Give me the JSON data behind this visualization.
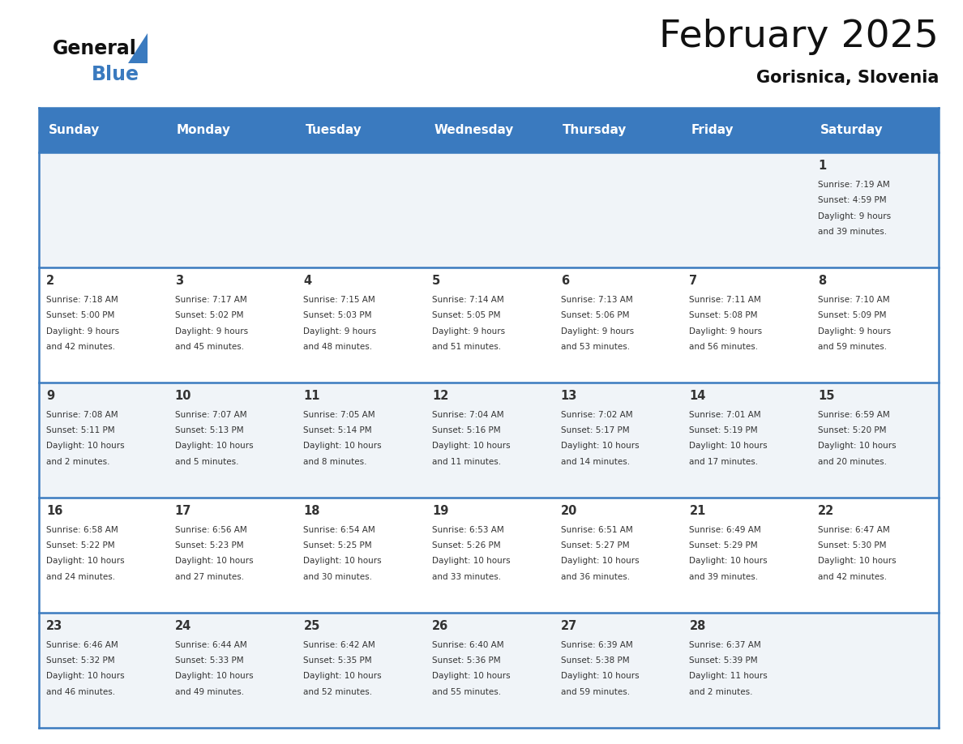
{
  "title": "February 2025",
  "subtitle": "Gorisnica, Slovenia",
  "header_bg_color": "#3a7abf",
  "header_text_color": "#ffffff",
  "cell_bg_even": "#f0f4f8",
  "cell_bg_odd": "#ffffff",
  "separator_color": "#3a7abf",
  "text_color": "#333333",
  "days_of_week": [
    "Sunday",
    "Monday",
    "Tuesday",
    "Wednesday",
    "Thursday",
    "Friday",
    "Saturday"
  ],
  "calendar_data": [
    [
      {
        "day": null,
        "sunrise": null,
        "sunset": null,
        "daylight": null
      },
      {
        "day": null,
        "sunrise": null,
        "sunset": null,
        "daylight": null
      },
      {
        "day": null,
        "sunrise": null,
        "sunset": null,
        "daylight": null
      },
      {
        "day": null,
        "sunrise": null,
        "sunset": null,
        "daylight": null
      },
      {
        "day": null,
        "sunrise": null,
        "sunset": null,
        "daylight": null
      },
      {
        "day": null,
        "sunrise": null,
        "sunset": null,
        "daylight": null
      },
      {
        "day": 1,
        "sunrise": "7:19 AM",
        "sunset": "4:59 PM",
        "daylight": "9 hours and 39 minutes."
      }
    ],
    [
      {
        "day": 2,
        "sunrise": "7:18 AM",
        "sunset": "5:00 PM",
        "daylight": "9 hours and 42 minutes."
      },
      {
        "day": 3,
        "sunrise": "7:17 AM",
        "sunset": "5:02 PM",
        "daylight": "9 hours and 45 minutes."
      },
      {
        "day": 4,
        "sunrise": "7:15 AM",
        "sunset": "5:03 PM",
        "daylight": "9 hours and 48 minutes."
      },
      {
        "day": 5,
        "sunrise": "7:14 AM",
        "sunset": "5:05 PM",
        "daylight": "9 hours and 51 minutes."
      },
      {
        "day": 6,
        "sunrise": "7:13 AM",
        "sunset": "5:06 PM",
        "daylight": "9 hours and 53 minutes."
      },
      {
        "day": 7,
        "sunrise": "7:11 AM",
        "sunset": "5:08 PM",
        "daylight": "9 hours and 56 minutes."
      },
      {
        "day": 8,
        "sunrise": "7:10 AM",
        "sunset": "5:09 PM",
        "daylight": "9 hours and 59 minutes."
      }
    ],
    [
      {
        "day": 9,
        "sunrise": "7:08 AM",
        "sunset": "5:11 PM",
        "daylight": "10 hours and 2 minutes."
      },
      {
        "day": 10,
        "sunrise": "7:07 AM",
        "sunset": "5:13 PM",
        "daylight": "10 hours and 5 minutes."
      },
      {
        "day": 11,
        "sunrise": "7:05 AM",
        "sunset": "5:14 PM",
        "daylight": "10 hours and 8 minutes."
      },
      {
        "day": 12,
        "sunrise": "7:04 AM",
        "sunset": "5:16 PM",
        "daylight": "10 hours and 11 minutes."
      },
      {
        "day": 13,
        "sunrise": "7:02 AM",
        "sunset": "5:17 PM",
        "daylight": "10 hours and 14 minutes."
      },
      {
        "day": 14,
        "sunrise": "7:01 AM",
        "sunset": "5:19 PM",
        "daylight": "10 hours and 17 minutes."
      },
      {
        "day": 15,
        "sunrise": "6:59 AM",
        "sunset": "5:20 PM",
        "daylight": "10 hours and 20 minutes."
      }
    ],
    [
      {
        "day": 16,
        "sunrise": "6:58 AM",
        "sunset": "5:22 PM",
        "daylight": "10 hours and 24 minutes."
      },
      {
        "day": 17,
        "sunrise": "6:56 AM",
        "sunset": "5:23 PM",
        "daylight": "10 hours and 27 minutes."
      },
      {
        "day": 18,
        "sunrise": "6:54 AM",
        "sunset": "5:25 PM",
        "daylight": "10 hours and 30 minutes."
      },
      {
        "day": 19,
        "sunrise": "6:53 AM",
        "sunset": "5:26 PM",
        "daylight": "10 hours and 33 minutes."
      },
      {
        "day": 20,
        "sunrise": "6:51 AM",
        "sunset": "5:27 PM",
        "daylight": "10 hours and 36 minutes."
      },
      {
        "day": 21,
        "sunrise": "6:49 AM",
        "sunset": "5:29 PM",
        "daylight": "10 hours and 39 minutes."
      },
      {
        "day": 22,
        "sunrise": "6:47 AM",
        "sunset": "5:30 PM",
        "daylight": "10 hours and 42 minutes."
      }
    ],
    [
      {
        "day": 23,
        "sunrise": "6:46 AM",
        "sunset": "5:32 PM",
        "daylight": "10 hours and 46 minutes."
      },
      {
        "day": 24,
        "sunrise": "6:44 AM",
        "sunset": "5:33 PM",
        "daylight": "10 hours and 49 minutes."
      },
      {
        "day": 25,
        "sunrise": "6:42 AM",
        "sunset": "5:35 PM",
        "daylight": "10 hours and 52 minutes."
      },
      {
        "day": 26,
        "sunrise": "6:40 AM",
        "sunset": "5:36 PM",
        "daylight": "10 hours and 55 minutes."
      },
      {
        "day": 27,
        "sunrise": "6:39 AM",
        "sunset": "5:38 PM",
        "daylight": "10 hours and 59 minutes."
      },
      {
        "day": 28,
        "sunrise": "6:37 AM",
        "sunset": "5:39 PM",
        "daylight": "11 hours and 2 minutes."
      },
      {
        "day": null,
        "sunrise": null,
        "sunset": null,
        "daylight": null
      }
    ]
  ]
}
